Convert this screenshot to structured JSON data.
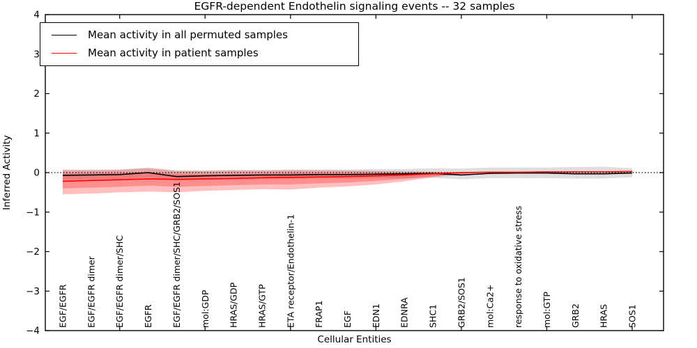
{
  "chart_data": {
    "type": "line",
    "title": "EGFR-dependent Endothelin signaling events -- 32 samples",
    "xlabel": "Cellular Entities",
    "ylabel": "Inferred Activity",
    "ylim": [
      -4,
      4
    ],
    "y_ticks": [
      4,
      3,
      2,
      1,
      0,
      -1,
      -2,
      -3,
      -4
    ],
    "y_tick_labels": [
      "4",
      "3",
      "2",
      "1",
      "0",
      "−1",
      "−2",
      "−3",
      "−4"
    ],
    "x_tick_indices": [
      2,
      5,
      8,
      11,
      14,
      17,
      20
    ],
    "grid": false,
    "zero_line": {
      "y": 0,
      "style": "dotted",
      "color": "#000000"
    },
    "legend_position": "upper left",
    "legend": [
      {
        "label": "Mean activity in all permuted samples",
        "color": "#000000"
      },
      {
        "label": "Mean activity in patient samples",
        "color": "#ff0000"
      }
    ],
    "categories": [
      "EGF/EGFR",
      "EGF/EGFR dimer",
      "EGF/EGFR dimer/SHC",
      "EGFR",
      "EGF/EGFR dimer/SHC/GRB2/SOS1",
      "mol:GDP",
      "HRAS/GDP",
      "HRAS/GTP",
      "ETA receptor/Endothelin-1",
      "FRAP1",
      "EGF",
      "EDN1",
      "EDNRA",
      "SHC1",
      "GRB2/SOS1",
      "mol:Ca2+",
      "response to oxidative stress",
      "mol:GTP",
      "GRB2",
      "HRAS",
      "SOS1"
    ],
    "series": [
      {
        "name": "Mean activity in all permuted samples",
        "color": "#000000",
        "values": [
          -0.07,
          -0.06,
          -0.05,
          0.0,
          -0.1,
          -0.08,
          -0.07,
          -0.06,
          -0.06,
          -0.05,
          -0.05,
          -0.04,
          -0.03,
          -0.02,
          -0.06,
          -0.02,
          -0.01,
          -0.01,
          -0.03,
          -0.03,
          -0.01
        ]
      },
      {
        "name": "Mean activity in patient samples",
        "color": "#ff0000",
        "values": [
          -0.22,
          -0.2,
          -0.18,
          -0.16,
          -0.17,
          -0.16,
          -0.15,
          -0.13,
          -0.12,
          -0.11,
          -0.1,
          -0.08,
          -0.06,
          -0.03,
          0.0,
          0.01,
          0.01,
          0.02,
          0.02,
          0.02,
          0.03
        ]
      }
    ],
    "bands": [
      {
        "name": "permuted-samples-spread",
        "color": "#000000",
        "opacity": 0.13,
        "upper": [
          0.08,
          0.08,
          0.08,
          0.13,
          0.06,
          0.06,
          0.07,
          0.07,
          0.08,
          0.08,
          0.08,
          0.09,
          0.09,
          0.11,
          0.1,
          0.13,
          0.13,
          0.13,
          0.14,
          0.15,
          0.11
        ],
        "lower": [
          -0.18,
          -0.17,
          -0.16,
          -0.12,
          -0.2,
          -0.18,
          -0.17,
          -0.16,
          -0.16,
          -0.15,
          -0.15,
          -0.14,
          -0.14,
          -0.13,
          -0.17,
          -0.14,
          -0.14,
          -0.14,
          -0.15,
          -0.15,
          -0.12
        ]
      },
      {
        "name": "patient-samples-spread-outer",
        "color": "#ff0000",
        "opacity": 0.25,
        "upper": [
          0.06,
          0.06,
          0.07,
          0.11,
          0.04,
          0.04,
          0.05,
          0.05,
          0.06,
          0.06,
          0.05,
          0.04,
          0.03,
          0.02,
          0.01,
          0.02,
          0.02,
          0.02,
          0.03,
          0.03,
          0.04
        ],
        "lower": [
          -0.55,
          -0.53,
          -0.5,
          -0.48,
          -0.5,
          -0.46,
          -0.44,
          -0.42,
          -0.43,
          -0.38,
          -0.35,
          -0.3,
          -0.22,
          -0.12,
          -0.04,
          0.01,
          0.01,
          0.02,
          0.02,
          0.02,
          0.03
        ]
      },
      {
        "name": "patient-samples-spread-inner",
        "color": "#ff0000",
        "opacity": 0.25,
        "upper": [
          -0.02,
          -0.02,
          -0.02,
          0.0,
          -0.04,
          -0.04,
          -0.03,
          -0.03,
          -0.02,
          -0.02,
          -0.02,
          -0.02,
          -0.01,
          -0.01,
          0.0,
          0.01,
          0.01,
          0.02,
          0.02,
          0.02,
          0.03
        ],
        "lower": [
          -0.4,
          -0.38,
          -0.36,
          -0.33,
          -0.36,
          -0.34,
          -0.32,
          -0.3,
          -0.3,
          -0.27,
          -0.25,
          -0.21,
          -0.16,
          -0.09,
          -0.03,
          0.01,
          0.01,
          0.02,
          0.02,
          0.02,
          0.03
        ]
      }
    ]
  }
}
